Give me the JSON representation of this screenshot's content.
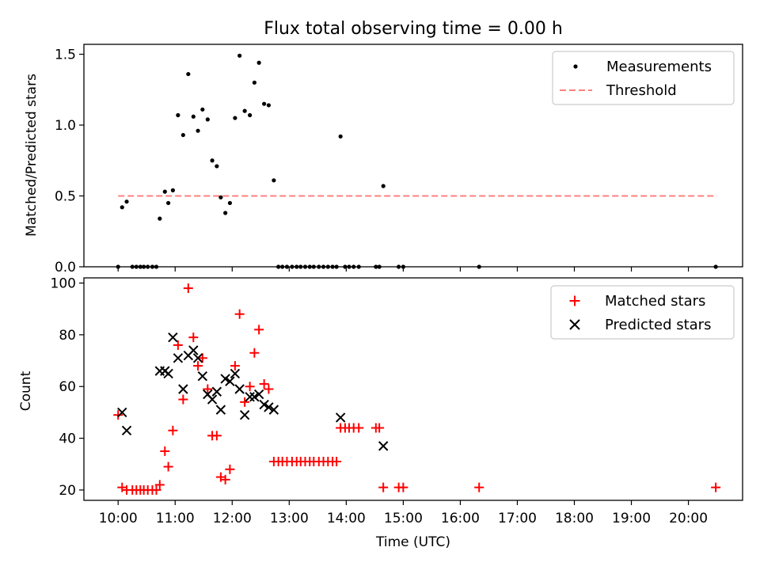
{
  "chart_data": [
    {
      "type": "scatter",
      "title": "Flux total observing time = 0.00 h",
      "xlabel": "",
      "ylabel": "Matched/Predicted stars",
      "xlim": [
        9.4,
        20.95
      ],
      "ylim": [
        0,
        1.57
      ],
      "yticks": [
        0,
        0.5,
        1.0,
        1.5
      ],
      "ytick_labels": [
        "0.0",
        "0.5",
        "1.0",
        "1.5"
      ],
      "legend": {
        "position": "top-right",
        "entries": [
          "Measurements",
          "Threshold"
        ]
      },
      "threshold": {
        "name": "Threshold",
        "value": 0.5,
        "x_range": [
          10.0,
          20.5
        ],
        "color": "#ff7f7f"
      },
      "series": [
        {
          "name": "Measurements",
          "marker": "dot",
          "color": "#000000",
          "points": [
            [
              10.0,
              0
            ],
            [
              10.07,
              0.42
            ],
            [
              10.15,
              0.46
            ],
            [
              10.25,
              0
            ],
            [
              10.32,
              0
            ],
            [
              10.39,
              0
            ],
            [
              10.45,
              0
            ],
            [
              10.52,
              0
            ],
            [
              10.6,
              0
            ],
            [
              10.67,
              0
            ],
            [
              10.73,
              0.34
            ],
            [
              10.82,
              0.53
            ],
            [
              10.88,
              0.45
            ],
            [
              10.96,
              0.54
            ],
            [
              11.05,
              1.07
            ],
            [
              11.14,
              0.93
            ],
            [
              11.23,
              1.36
            ],
            [
              11.32,
              1.06
            ],
            [
              11.4,
              0.96
            ],
            [
              11.48,
              1.11
            ],
            [
              11.57,
              1.04
            ],
            [
              11.65,
              0.75
            ],
            [
              11.73,
              0.71
            ],
            [
              11.8,
              0.49
            ],
            [
              11.88,
              0.38
            ],
            [
              11.96,
              0.45
            ],
            [
              12.05,
              1.05
            ],
            [
              12.13,
              1.49
            ],
            [
              12.22,
              1.1
            ],
            [
              12.31,
              1.07
            ],
            [
              12.39,
              1.3
            ],
            [
              12.47,
              1.44
            ],
            [
              12.56,
              1.15
            ],
            [
              12.64,
              1.14
            ],
            [
              12.73,
              0.61
            ],
            [
              12.81,
              0
            ],
            [
              12.88,
              0
            ],
            [
              12.96,
              0
            ],
            [
              13.05,
              0
            ],
            [
              13.13,
              0
            ],
            [
              13.2,
              0
            ],
            [
              13.28,
              0
            ],
            [
              13.36,
              0
            ],
            [
              13.43,
              0
            ],
            [
              13.52,
              0
            ],
            [
              13.6,
              0
            ],
            [
              13.68,
              0
            ],
            [
              13.76,
              0
            ],
            [
              13.83,
              0
            ],
            [
              13.9,
              0.92
            ],
            [
              13.98,
              0
            ],
            [
              14.05,
              0
            ],
            [
              14.13,
              0
            ],
            [
              14.22,
              0
            ],
            [
              14.52,
              0
            ],
            [
              14.58,
              0
            ],
            [
              14.65,
              0.57
            ],
            [
              14.92,
              0
            ],
            [
              15.0,
              0
            ],
            [
              16.33,
              0
            ],
            [
              20.48,
              0
            ]
          ]
        }
      ]
    },
    {
      "type": "scatter",
      "title": "",
      "xlabel": "Time (UTC)",
      "ylabel": "Count",
      "xlim": [
        9.4,
        20.95
      ],
      "ylim": [
        16,
        102
      ],
      "yticks": [
        20,
        40,
        60,
        80,
        100
      ],
      "ytick_labels": [
        "20",
        "40",
        "60",
        "80",
        "100"
      ],
      "xticks": [
        10,
        11,
        12,
        13,
        14,
        15,
        16,
        17,
        18,
        19,
        20
      ],
      "xtick_labels": [
        "10:00",
        "11:00",
        "12:00",
        "13:00",
        "14:00",
        "15:00",
        "16:00",
        "17:00",
        "18:00",
        "19:00",
        "20:00"
      ],
      "legend": {
        "position": "top-right",
        "entries": [
          "Matched stars",
          "Predicted stars"
        ]
      },
      "series": [
        {
          "name": "Matched stars",
          "marker": "plus",
          "color": "#ff0000",
          "points": [
            [
              10.0,
              49
            ],
            [
              10.07,
              21
            ],
            [
              10.15,
              20
            ],
            [
              10.25,
              20
            ],
            [
              10.32,
              20
            ],
            [
              10.39,
              20
            ],
            [
              10.45,
              20
            ],
            [
              10.52,
              20
            ],
            [
              10.6,
              20
            ],
            [
              10.67,
              20
            ],
            [
              10.73,
              22
            ],
            [
              10.82,
              35
            ],
            [
              10.88,
              29
            ],
            [
              10.96,
              43
            ],
            [
              11.05,
              76
            ],
            [
              11.14,
              55
            ],
            [
              11.23,
              98
            ],
            [
              11.32,
              79
            ],
            [
              11.4,
              68
            ],
            [
              11.48,
              71
            ],
            [
              11.57,
              59
            ],
            [
              11.65,
              41
            ],
            [
              11.73,
              41
            ],
            [
              11.8,
              25
            ],
            [
              11.88,
              24
            ],
            [
              11.96,
              28
            ],
            [
              12.05,
              68
            ],
            [
              12.13,
              88
            ],
            [
              12.22,
              54
            ],
            [
              12.31,
              60
            ],
            [
              12.39,
              73
            ],
            [
              12.47,
              82
            ],
            [
              12.56,
              61
            ],
            [
              12.64,
              59
            ],
            [
              12.73,
              31
            ],
            [
              12.81,
              31
            ],
            [
              12.88,
              31
            ],
            [
              12.96,
              31
            ],
            [
              13.05,
              31
            ],
            [
              13.13,
              31
            ],
            [
              13.2,
              31
            ],
            [
              13.28,
              31
            ],
            [
              13.36,
              31
            ],
            [
              13.43,
              31
            ],
            [
              13.52,
              31
            ],
            [
              13.6,
              31
            ],
            [
              13.68,
              31
            ],
            [
              13.76,
              31
            ],
            [
              13.83,
              31
            ],
            [
              13.9,
              44
            ],
            [
              13.98,
              44
            ],
            [
              14.05,
              44
            ],
            [
              14.13,
              44
            ],
            [
              14.22,
              44
            ],
            [
              14.52,
              44
            ],
            [
              14.58,
              44
            ],
            [
              14.65,
              21
            ],
            [
              14.92,
              21
            ],
            [
              15.0,
              21
            ],
            [
              16.33,
              21
            ],
            [
              20.48,
              21
            ]
          ]
        },
        {
          "name": "Predicted stars",
          "marker": "x",
          "color": "#000000",
          "points": [
            [
              10.07,
              50
            ],
            [
              10.15,
              43
            ],
            [
              10.73,
              66
            ],
            [
              10.82,
              66
            ],
            [
              10.88,
              65
            ],
            [
              10.96,
              79
            ],
            [
              11.05,
              71
            ],
            [
              11.14,
              59
            ],
            [
              11.23,
              72
            ],
            [
              11.32,
              74
            ],
            [
              11.4,
              71
            ],
            [
              11.48,
              64
            ],
            [
              11.57,
              57
            ],
            [
              11.65,
              55
            ],
            [
              11.73,
              58
            ],
            [
              11.8,
              51
            ],
            [
              11.88,
              63
            ],
            [
              11.96,
              62
            ],
            [
              12.05,
              65
            ],
            [
              12.13,
              59
            ],
            [
              12.22,
              49
            ],
            [
              12.31,
              56
            ],
            [
              12.39,
              56
            ],
            [
              12.47,
              57
            ],
            [
              12.56,
              53
            ],
            [
              12.64,
              52
            ],
            [
              12.73,
              51
            ],
            [
              13.9,
              48
            ],
            [
              14.65,
              37
            ]
          ]
        }
      ]
    }
  ]
}
